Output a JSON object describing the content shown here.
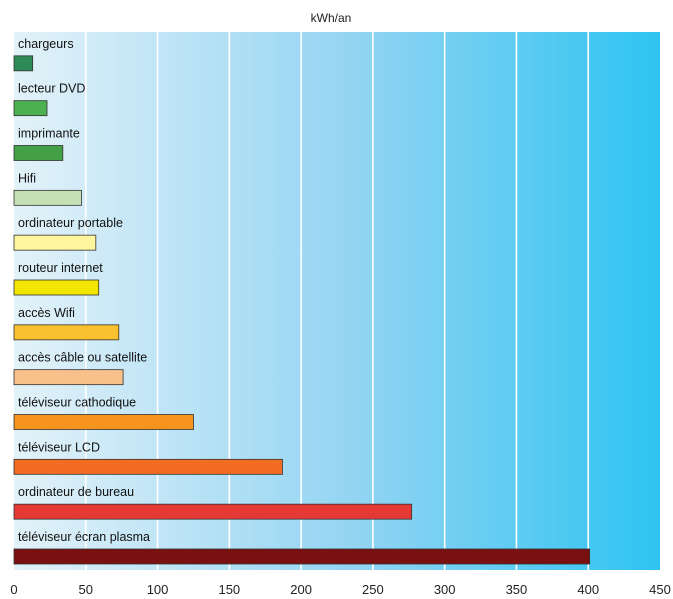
{
  "chart_data": {
    "type": "bar",
    "orientation": "horizontal",
    "title": "kWh/an",
    "xlim": [
      0,
      450
    ],
    "x_ticks": [
      0,
      50,
      100,
      150,
      200,
      250,
      300,
      350,
      400,
      450
    ],
    "grid": true,
    "categories": [
      "chargeurs",
      "lecteur DVD",
      "imprimante",
      "Hifi",
      "ordinateur portable",
      "routeur internet",
      "accès Wifi",
      "accès câble ou satellite",
      "téléviseur cathodique",
      "téléviseur LCD",
      "ordinateur de bureau",
      "téléviseur écran plasma"
    ],
    "values": [
      13,
      23,
      34,
      47,
      57,
      59,
      73,
      76,
      125,
      187,
      277,
      401
    ],
    "colors": [
      "#2e8b57",
      "#4caf50",
      "#43a047",
      "#c5e0b4",
      "#fff59d",
      "#f2e600",
      "#fbc02d",
      "#f8c08a",
      "#f7941d",
      "#f26c22",
      "#e53935",
      "#7b1010"
    ]
  }
}
